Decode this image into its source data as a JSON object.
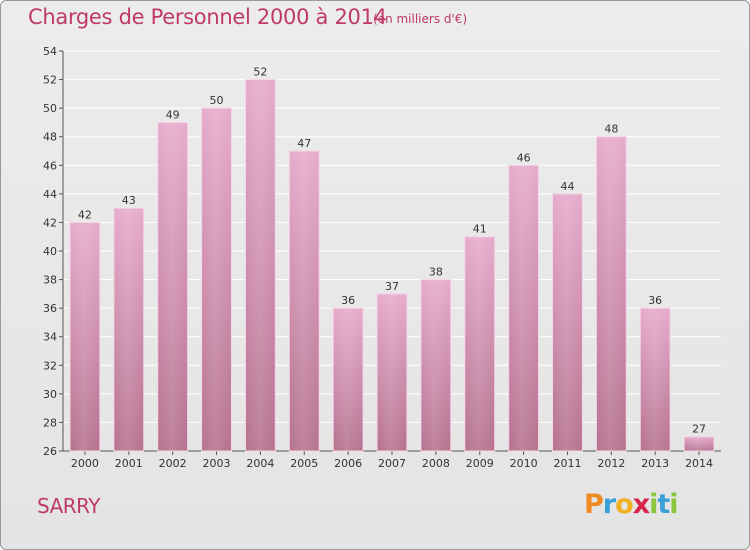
{
  "header": {
    "title": "Charges de Personnel 2000 à 2014",
    "subtitle": "(en milliers d'€)"
  },
  "footer": {
    "place": "SARRY",
    "brand_letters": [
      "P",
      "r",
      "o",
      "x",
      "i",
      "t",
      "i"
    ],
    "brand_colors": [
      "#f08a24",
      "#3aa0d8",
      "#f0b021",
      "#d8234a",
      "#8cc63f",
      "#3aa0d8",
      "#8cc63f"
    ]
  },
  "colors": {
    "bar_top": "#e6aacb",
    "bar_bottom": "#b5728f",
    "accent": "#c0396b",
    "grid": "#ffffff"
  },
  "chart_data": {
    "type": "bar",
    "title": "Charges de Personnel 2000 à 2014",
    "subtitle": "(en milliers d'€)",
    "xlabel": "",
    "ylabel": "",
    "categories": [
      "2000",
      "2001",
      "2002",
      "2003",
      "2004",
      "2005",
      "2006",
      "2007",
      "2008",
      "2009",
      "2010",
      "2011",
      "2012",
      "2013",
      "2014"
    ],
    "values": [
      42,
      43,
      49,
      50,
      52,
      47,
      36,
      37,
      38,
      41,
      46,
      44,
      48,
      36,
      27
    ],
    "ylim": [
      26,
      54
    ],
    "yticks": [
      26,
      28,
      30,
      32,
      34,
      36,
      38,
      40,
      42,
      44,
      46,
      48,
      50,
      52,
      54
    ],
    "grid": true,
    "legend": "none"
  }
}
